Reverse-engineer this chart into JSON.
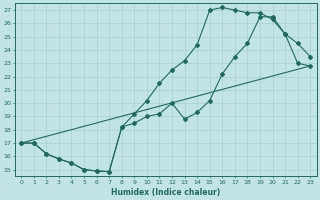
{
  "bg_color": "#c2e4e4",
  "grid_color": "#a8d0d0",
  "line_color": "#1e6b5e",
  "xlabel": "Humidex (Indice chaleur)",
  "xlim": [
    -0.5,
    23.5
  ],
  "ylim": [
    14.5,
    27.5
  ],
  "xticks": [
    0,
    1,
    2,
    3,
    4,
    5,
    6,
    7,
    8,
    9,
    10,
    11,
    12,
    13,
    14,
    15,
    16,
    17,
    18,
    19,
    20,
    21,
    22,
    23
  ],
  "yticks": [
    15,
    16,
    17,
    18,
    19,
    20,
    21,
    22,
    23,
    24,
    25,
    26,
    27
  ],
  "line1_x": [
    0,
    1,
    2,
    3,
    4,
    5,
    6,
    7,
    8,
    9,
    10,
    11,
    12,
    13,
    14,
    15,
    16,
    17,
    18,
    19,
    20,
    21,
    22,
    23
  ],
  "line1_y": [
    17.0,
    17.0,
    16.2,
    15.8,
    15.5,
    15.0,
    14.9,
    14.85,
    18.2,
    19.2,
    20.2,
    21.5,
    22.5,
    23.2,
    24.4,
    27.0,
    27.2,
    27.0,
    26.8,
    26.8,
    26.3,
    25.2,
    24.5,
    23.5
  ],
  "line2_x": [
    0,
    1,
    2,
    3,
    4,
    5,
    6,
    7,
    8,
    9,
    10,
    11,
    12,
    13,
    14,
    15,
    16,
    17,
    18,
    19,
    20,
    21,
    22,
    23
  ],
  "line2_y": [
    17.0,
    17.0,
    16.2,
    15.8,
    15.5,
    15.0,
    14.9,
    14.85,
    18.2,
    18.5,
    19.0,
    19.2,
    20.0,
    18.8,
    19.3,
    20.2,
    22.2,
    23.5,
    24.5,
    26.5,
    26.5,
    25.2,
    23.0,
    22.8
  ],
  "line3_x": [
    0,
    23
  ],
  "line3_y": [
    17.0,
    22.8
  ]
}
